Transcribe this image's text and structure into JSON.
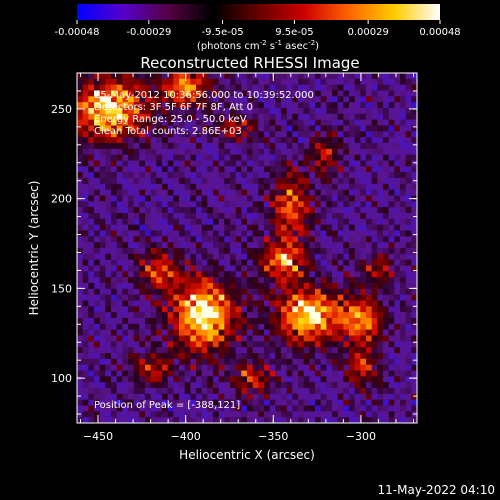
{
  "chart_data": {
    "type": "heatmap",
    "title": "Reconstructed RHESSI Image",
    "xlabel": "Heliocentric X (arcsec)",
    "ylabel": "Heliocentric Y (arcsec)",
    "xlim": [
      -462,
      -268
    ],
    "ylim": [
      75,
      270
    ],
    "xticks": [
      -450,
      -400,
      -350,
      -300
    ],
    "yticks": [
      100,
      150,
      200,
      250
    ],
    "grid": false,
    "colorbar": {
      "position": "top",
      "range": [
        -0.00048,
        0.00048
      ],
      "ticks": [
        -0.00048,
        -0.00029,
        -9.5e-05,
        9.5e-05,
        0.00029,
        0.00048
      ],
      "tick_labels": [
        "-0.00048",
        "-0.00029",
        "-9.5e-05",
        "9.5e-05",
        "0.00029",
        "0.00048"
      ],
      "unit_prefix": "(photons cm",
      "unit_exp1": "-2",
      "unit_mid": " s",
      "unit_exp2": "-1",
      "unit_suffix": " asec",
      "unit_exp3": "-2",
      "unit_close": ")",
      "colors": [
        "#0000ff",
        "#5500cc",
        "#550044",
        "#000000",
        "#660000",
        "#cc0000",
        "#ff6600",
        "#ffcc00",
        "#ffffff"
      ]
    },
    "annotations": {
      "time_range": "25-May-2012 10:36:56.000 to 10:39:52.000",
      "detectors": "Detectors: 3F 5F 6F 7F 8F, Att 0",
      "energy_range": "Energy Range: 25.0 - 50.0 keV",
      "method": "Clean    Total counts: 2.86E+03",
      "peak": "Position of Peak = [-388,121]"
    },
    "peak": {
      "x": -388,
      "y": 121
    },
    "bright_regions": [
      {
        "x": -443,
        "y": 250,
        "sx": 15,
        "sy": 12,
        "amp": 1.0
      },
      {
        "x": -400,
        "y": 262,
        "sx": 10,
        "sy": 7,
        "amp": 0.8
      },
      {
        "x": -390,
        "y": 135,
        "sx": 13,
        "sy": 14,
        "amp": 1.05
      },
      {
        "x": -415,
        "y": 160,
        "sx": 8,
        "sy": 8,
        "amp": 0.6
      },
      {
        "x": -330,
        "y": 135,
        "sx": 13,
        "sy": 11,
        "amp": 1.0
      },
      {
        "x": -345,
        "y": 165,
        "sx": 9,
        "sy": 8,
        "amp": 0.75
      },
      {
        "x": -340,
        "y": 195,
        "sx": 8,
        "sy": 14,
        "amp": 0.7
      },
      {
        "x": -300,
        "y": 132,
        "sx": 8,
        "sy": 10,
        "amp": 0.75
      },
      {
        "x": -300,
        "y": 105,
        "sx": 7,
        "sy": 7,
        "amp": 0.55
      },
      {
        "x": -420,
        "y": 105,
        "sx": 9,
        "sy": 6,
        "amp": 0.5
      },
      {
        "x": -372,
        "y": 240,
        "sx": 10,
        "sy": 5,
        "amp": 0.45
      },
      {
        "x": -320,
        "y": 225,
        "sx": 6,
        "sy": 8,
        "amp": 0.5
      },
      {
        "x": -290,
        "y": 160,
        "sx": 6,
        "sy": 6,
        "amp": 0.45
      },
      {
        "x": -362,
        "y": 100,
        "sx": 8,
        "sy": 6,
        "amp": 0.55
      }
    ]
  },
  "footer": {
    "date": "11-May-2022 04:10"
  }
}
